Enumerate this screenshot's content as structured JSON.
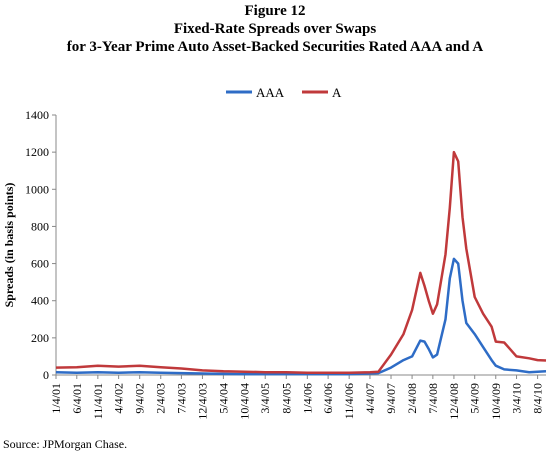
{
  "figure_label": "Figure 12",
  "title_line1": "Fixed-Rate Spreads over Swaps",
  "title_line2": "for 3-Year Prime Auto Asset-Backed Securities Rated AAA and A",
  "source": "Source:  JPMorgan Chase.",
  "chart_data": {
    "type": "line",
    "ylabel": "Spreads (in basis points)",
    "xlabel": "",
    "ylim": [
      0,
      1400
    ],
    "yticks": [
      0,
      200,
      400,
      600,
      800,
      1000,
      1200,
      1400
    ],
    "grid": false,
    "legend_position": "top-center",
    "x_tick_labels": [
      "1/4/01",
      "6/4/01",
      "11/4/01",
      "4/4/02",
      "9/4/02",
      "2/4/03",
      "7/4/03",
      "12/4/03",
      "5/4/04",
      "10/4/04",
      "3/4/05",
      "8/4/05",
      "1/4/06",
      "6/4/06",
      "11/4/06",
      "4/4/07",
      "9/4/07",
      "2/4/08",
      "7/4/08",
      "12/4/08",
      "5/4/09",
      "10/4/09",
      "3/4/10",
      "8/4/10"
    ],
    "series": [
      {
        "name": "AAA",
        "color": "#2e6cc6",
        "points": [
          [
            "1/4/01",
            15
          ],
          [
            "6/4/01",
            12
          ],
          [
            "11/4/01",
            15
          ],
          [
            "4/4/02",
            12
          ],
          [
            "9/4/02",
            15
          ],
          [
            "2/4/03",
            12
          ],
          [
            "7/4/03",
            10
          ],
          [
            "12/4/03",
            8
          ],
          [
            "5/4/04",
            6
          ],
          [
            "10/4/04",
            5
          ],
          [
            "3/4/05",
            5
          ],
          [
            "8/4/05",
            5
          ],
          [
            "1/4/06",
            5
          ],
          [
            "6/4/06",
            5
          ],
          [
            "11/4/06",
            5
          ],
          [
            "4/4/07",
            8
          ],
          [
            "6/4/07",
            10
          ],
          [
            "9/4/07",
            40
          ],
          [
            "12/4/07",
            80
          ],
          [
            "2/4/08",
            100
          ],
          [
            "4/4/08",
            185
          ],
          [
            "5/4/08",
            180
          ],
          [
            "6/4/08",
            140
          ],
          [
            "7/4/08",
            95
          ],
          [
            "8/4/08",
            110
          ],
          [
            "10/4/08",
            300
          ],
          [
            "11/4/08",
            520
          ],
          [
            "12/4/08",
            625
          ],
          [
            "1/4/09",
            600
          ],
          [
            "2/4/09",
            400
          ],
          [
            "3/4/09",
            280
          ],
          [
            "5/4/09",
            220
          ],
          [
            "7/4/09",
            150
          ],
          [
            "9/4/09",
            80
          ],
          [
            "10/4/09",
            50
          ],
          [
            "12/4/09",
            30
          ],
          [
            "3/4/10",
            25
          ],
          [
            "6/4/10",
            15
          ],
          [
            "8/4/10",
            18
          ],
          [
            "10/4/10",
            20
          ]
        ]
      },
      {
        "name": "A",
        "color": "#c0393b",
        "points": [
          [
            "1/4/01",
            40
          ],
          [
            "6/4/01",
            42
          ],
          [
            "11/4/01",
            50
          ],
          [
            "4/4/02",
            45
          ],
          [
            "9/4/02",
            50
          ],
          [
            "2/4/03",
            42
          ],
          [
            "7/4/03",
            35
          ],
          [
            "12/4/03",
            25
          ],
          [
            "5/4/04",
            20
          ],
          [
            "10/4/04",
            18
          ],
          [
            "3/4/05",
            15
          ],
          [
            "8/4/05",
            15
          ],
          [
            "1/4/06",
            12
          ],
          [
            "6/4/06",
            12
          ],
          [
            "11/4/06",
            12
          ],
          [
            "4/4/07",
            15
          ],
          [
            "6/4/07",
            18
          ],
          [
            "9/4/07",
            110
          ],
          [
            "12/4/07",
            220
          ],
          [
            "2/4/08",
            350
          ],
          [
            "4/4/08",
            550
          ],
          [
            "5/4/08",
            480
          ],
          [
            "6/4/08",
            400
          ],
          [
            "7/4/08",
            330
          ],
          [
            "8/4/08",
            380
          ],
          [
            "10/4/08",
            650
          ],
          [
            "11/4/08",
            900
          ],
          [
            "12/4/08",
            1200
          ],
          [
            "1/4/09",
            1150
          ],
          [
            "2/4/09",
            850
          ],
          [
            "3/4/09",
            680
          ],
          [
            "5/4/09",
            420
          ],
          [
            "7/4/09",
            330
          ],
          [
            "9/4/09",
            260
          ],
          [
            "10/4/09",
            180
          ],
          [
            "12/4/09",
            175
          ],
          [
            "3/4/10",
            100
          ],
          [
            "6/4/10",
            90
          ],
          [
            "8/4/10",
            80
          ],
          [
            "10/4/10",
            78
          ]
        ]
      }
    ]
  }
}
